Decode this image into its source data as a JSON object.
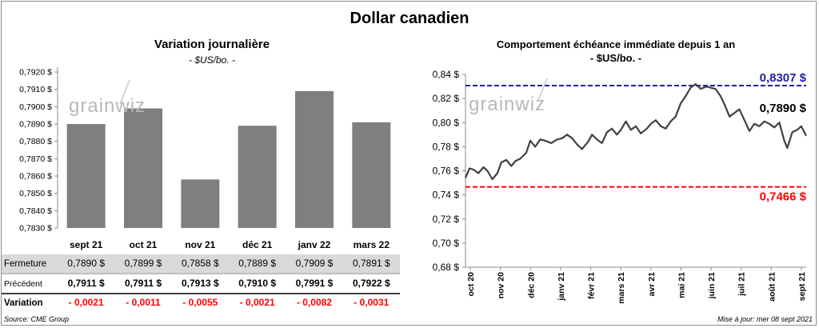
{
  "title": "Dollar canadien",
  "source": "Source: CME Group",
  "update": "Mise à jour: mer 08 sept 2021",
  "watermark": "grainwiz",
  "chart_data": [
    {
      "type": "bar",
      "title": "Variation  journalière",
      "subtitle": "- $US/bo. -",
      "categories": [
        "sept 21",
        "oct 21",
        "nov 21",
        "déc 21",
        "janv 22",
        "mars 22"
      ],
      "values": [
        0.789,
        0.7899,
        0.7858,
        0.7889,
        0.7909,
        0.7891
      ],
      "ylim": [
        0.783,
        0.792
      ],
      "yticks": [
        "0,7830 $",
        "0,7840 $",
        "0,7850 $",
        "0,7860 $",
        "0,7870 $",
        "0,7880 $",
        "0,7890 $",
        "0,7900 $",
        "0,7910 $",
        "0,7920 $"
      ],
      "bar_color": "#7f7f7f",
      "table": {
        "rows": [
          {
            "label": "Fermeture",
            "values": [
              "0,7890  $",
              "0,7899  $",
              "0,7858  $",
              "0,7889  $",
              "0,7909  $",
              "0,7891  $"
            ]
          },
          {
            "label": "Précédent",
            "values": [
              "0,7911  $",
              "0,7911  $",
              "0,7913  $",
              "0,7910  $",
              "0,7991  $",
              "0,7922  $"
            ]
          },
          {
            "label": "Variation",
            "values": [
              "- 0,0021",
              "- 0,0011",
              "- 0,0055",
              "- 0,0021",
              "- 0,0082",
              "- 0,0031"
            ]
          }
        ],
        "variation_color": "#ff0000",
        "highlight_color": "#d9d9d9"
      }
    },
    {
      "type": "line",
      "title": "Comportement échéance immédiate depuis 1 an",
      "subtitle": "- $US/bo. -",
      "ylim": [
        0.68,
        0.84
      ],
      "yticks": [
        "0,68 $",
        "0,70 $",
        "0,72 $",
        "0,74 $",
        "0,76 $",
        "0,78 $",
        "0,80 $",
        "0,82 $",
        "0,84 $"
      ],
      "xticks": [
        "oct 20",
        "nov 20",
        "déc 20",
        "janv 21",
        "févr 21",
        "mars 21",
        "avr 21",
        "mai 21",
        "juin 21",
        "juil 21",
        "août 21",
        "sept 21"
      ],
      "high": {
        "value": 0.8307,
        "label": "0,8307 $",
        "color": "#1f1fa8"
      },
      "low": {
        "value": 0.7466,
        "label": "0,7466 $",
        "color": "#ff0000"
      },
      "last": {
        "value": 0.789,
        "label": "0,7890 $"
      },
      "line_color": "#404040",
      "series": [
        {
          "x": [
            "2020-10-01",
            "2020-10-05",
            "2020-10-09",
            "2020-10-14",
            "2020-10-19",
            "2020-10-23",
            "2020-10-28",
            "2020-11-02",
            "2020-11-06",
            "2020-11-11",
            "2020-11-16",
            "2020-11-20",
            "2020-11-25",
            "2020-12-01",
            "2020-12-05",
            "2020-12-10",
            "2020-12-15",
            "2020-12-20",
            "2020-12-26",
            "2021-01-01",
            "2021-01-06",
            "2021-01-11",
            "2021-01-16",
            "2021-01-21",
            "2021-01-26",
            "2021-02-01",
            "2021-02-05",
            "2021-02-10",
            "2021-02-15",
            "2021-02-20",
            "2021-02-25",
            "2021-03-02",
            "2021-03-06",
            "2021-03-11",
            "2021-03-16",
            "2021-03-21",
            "2021-03-26",
            "2021-04-01",
            "2021-04-05",
            "2021-04-10",
            "2021-04-15",
            "2021-04-20",
            "2021-04-25",
            "2021-04-30",
            "2021-05-05",
            "2021-05-10",
            "2021-05-15",
            "2021-05-20",
            "2021-05-25",
            "2021-05-31",
            "2021-06-04",
            "2021-06-09",
            "2021-06-14",
            "2021-06-18",
            "2021-06-23",
            "2021-06-28",
            "2021-07-03",
            "2021-07-08",
            "2021-07-13",
            "2021-07-18",
            "2021-07-23",
            "2021-07-28",
            "2021-08-02",
            "2021-08-07",
            "2021-08-12",
            "2021-08-17",
            "2021-08-20",
            "2021-08-25",
            "2021-08-30",
            "2021-09-03",
            "2021-09-08"
          ],
          "y": [
            0.754,
            0.762,
            0.761,
            0.758,
            0.763,
            0.76,
            0.753,
            0.758,
            0.767,
            0.769,
            0.764,
            0.768,
            0.77,
            0.775,
            0.785,
            0.78,
            0.786,
            0.785,
            0.783,
            0.786,
            0.787,
            0.79,
            0.787,
            0.782,
            0.778,
            0.784,
            0.79,
            0.786,
            0.783,
            0.792,
            0.795,
            0.79,
            0.794,
            0.801,
            0.794,
            0.797,
            0.791,
            0.795,
            0.799,
            0.802,
            0.797,
            0.795,
            0.801,
            0.805,
            0.816,
            0.822,
            0.829,
            0.832,
            0.828,
            0.83,
            0.829,
            0.828,
            0.822,
            0.815,
            0.805,
            0.808,
            0.811,
            0.802,
            0.793,
            0.799,
            0.797,
            0.801,
            0.799,
            0.796,
            0.8,
            0.785,
            0.779,
            0.792,
            0.794,
            0.797,
            0.789
          ]
        }
      ]
    }
  ]
}
